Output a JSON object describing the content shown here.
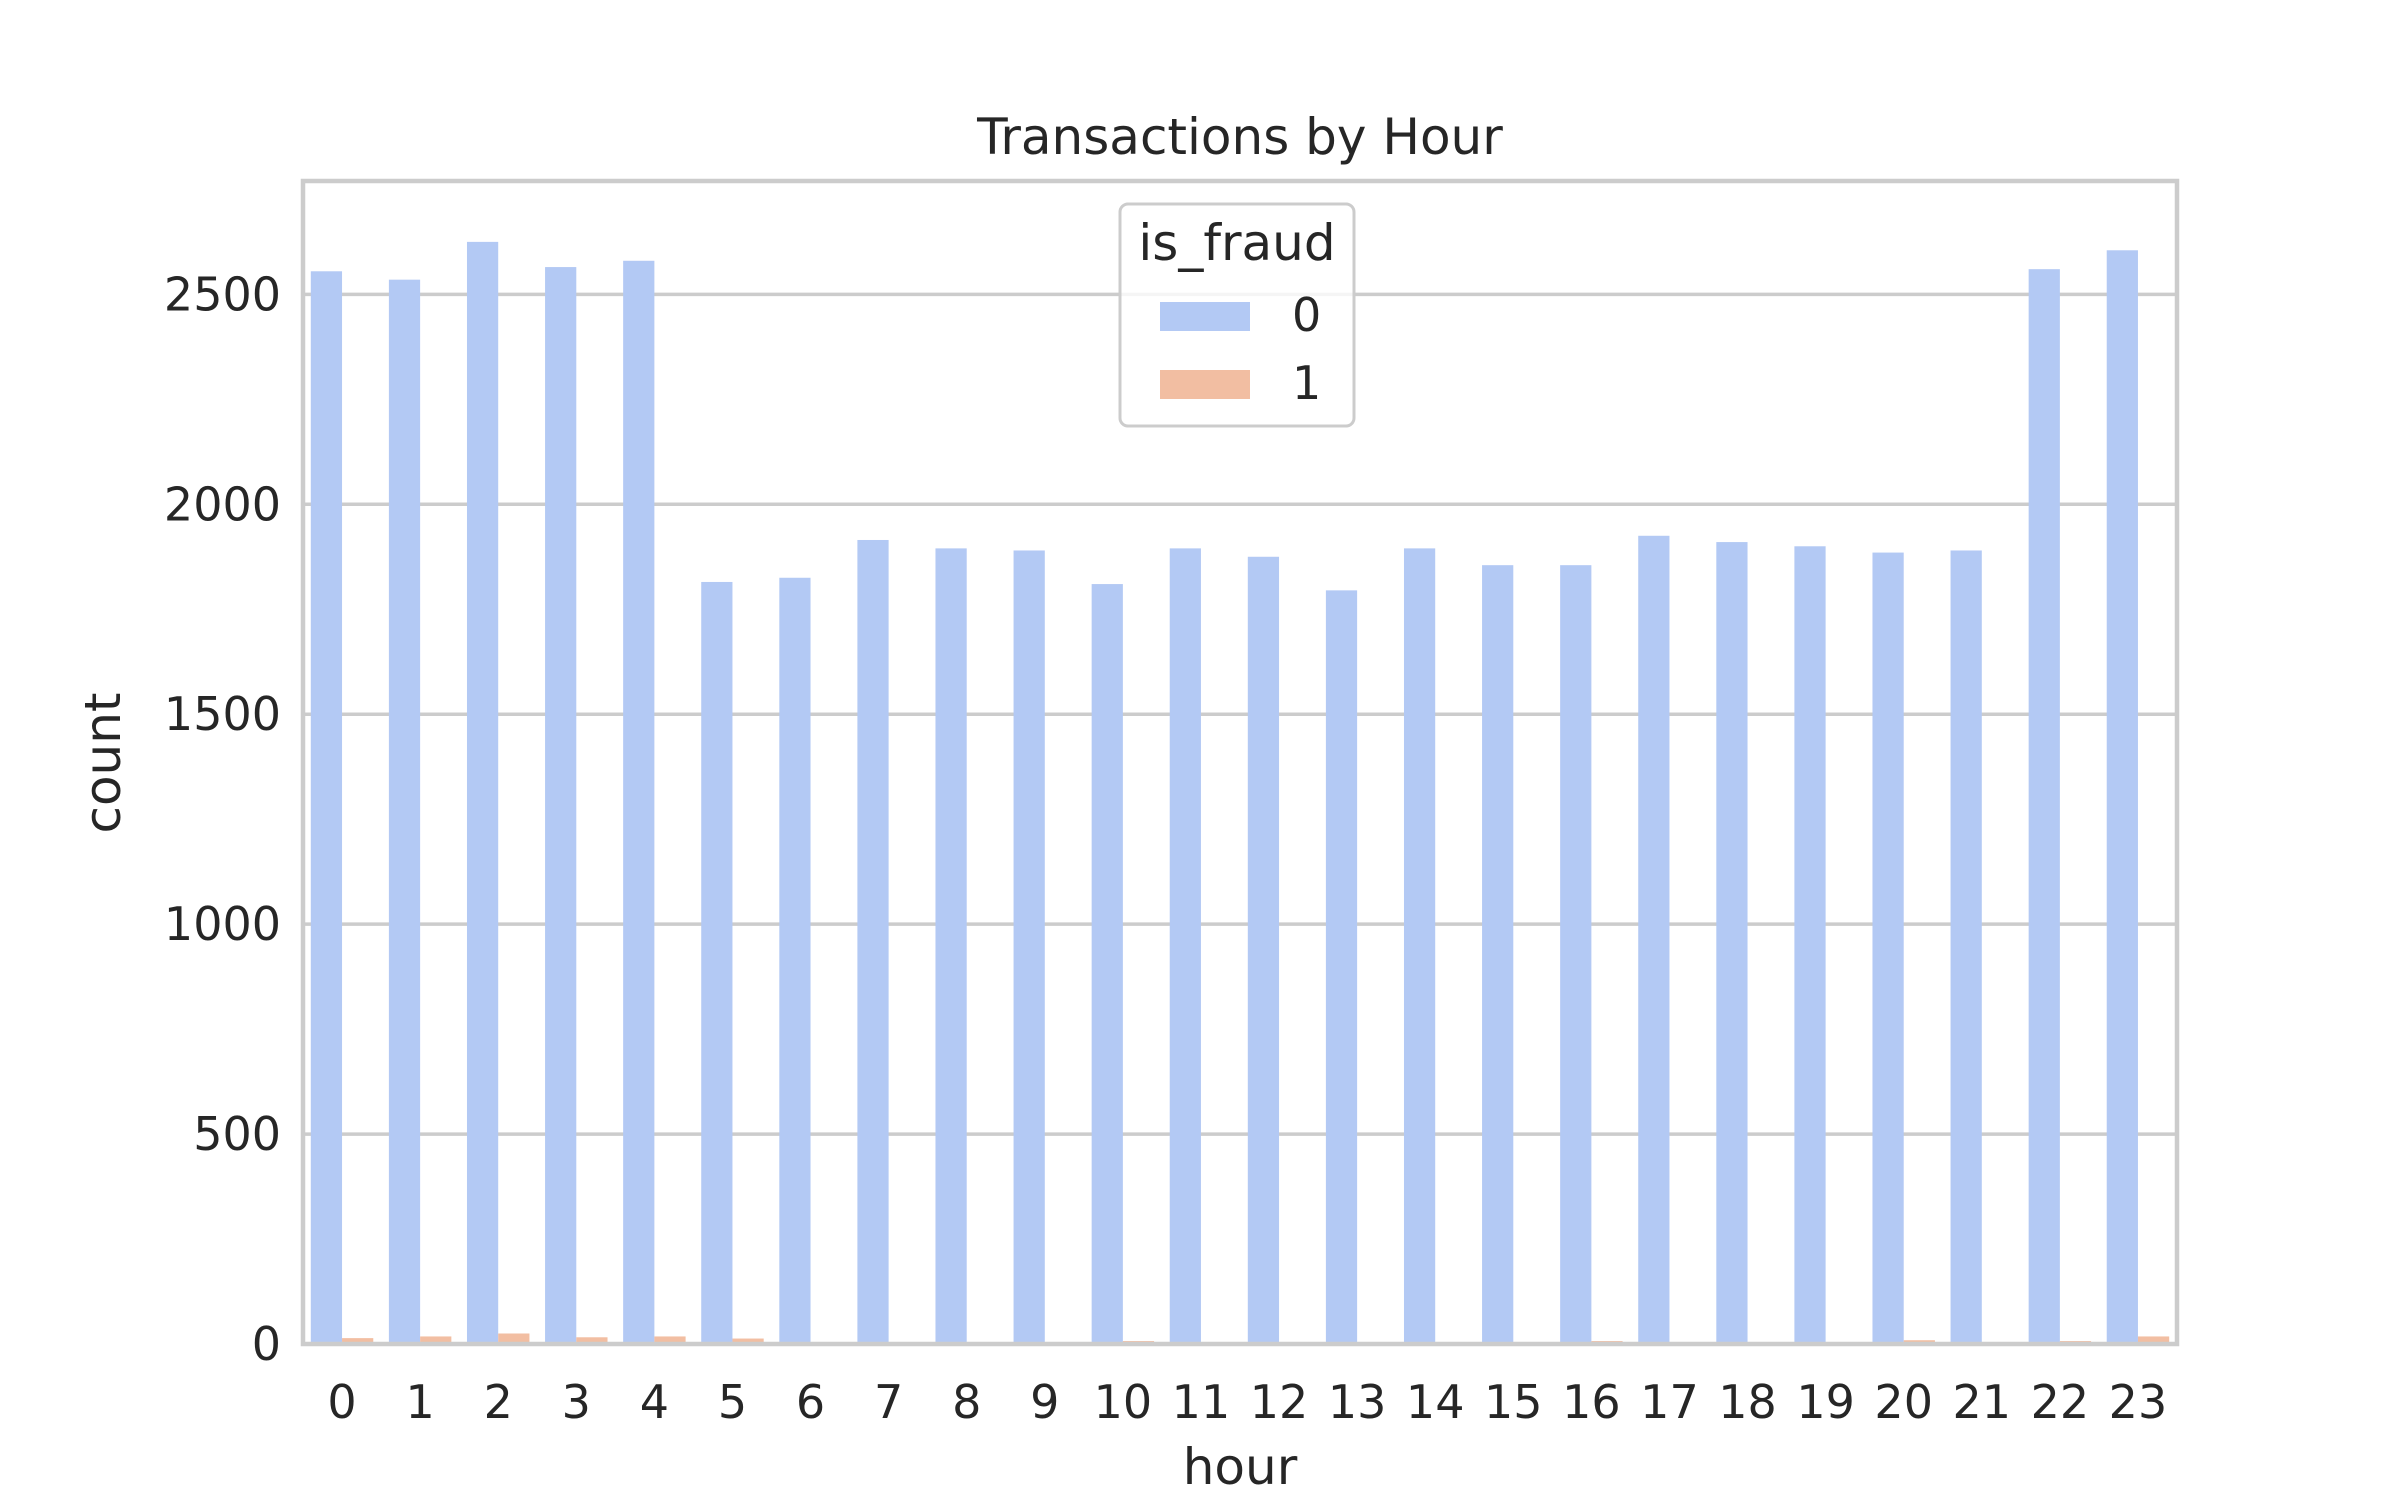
{
  "chart_data": {
    "type": "bar",
    "title": "Transactions by Hour",
    "xlabel": "hour",
    "ylabel": "count",
    "categories": [
      "0",
      "1",
      "2",
      "3",
      "4",
      "5",
      "6",
      "7",
      "8",
      "9",
      "10",
      "11",
      "12",
      "13",
      "14",
      "15",
      "16",
      "17",
      "18",
      "19",
      "20",
      "21",
      "22",
      "23"
    ],
    "series": [
      {
        "name": "0",
        "color": "#b3c9f4",
        "values": [
          2555,
          2535,
          2625,
          2565,
          2580,
          1815,
          1825,
          1915,
          1895,
          1890,
          1810,
          1895,
          1875,
          1795,
          1895,
          1855,
          1855,
          1925,
          1910,
          1900,
          1885,
          1890,
          2560,
          2605
        ]
      },
      {
        "name": "1",
        "color": "#f2bea2",
        "values": [
          14,
          18,
          25,
          16,
          18,
          13,
          3,
          3,
          3,
          3,
          7,
          3,
          3,
          3,
          3,
          4,
          7,
          3,
          3,
          3,
          9,
          4,
          7,
          18
        ]
      }
    ],
    "ylim": [
      0,
      2770
    ],
    "yticks": [
      0,
      500,
      1000,
      1500,
      2000,
      2500
    ],
    "grid": true,
    "legend": {
      "title": "is_fraud",
      "position": "top-center"
    }
  }
}
